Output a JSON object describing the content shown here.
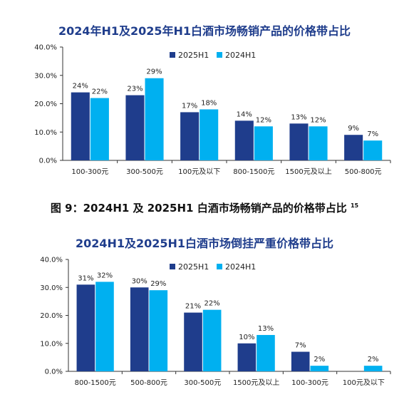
{
  "colors": {
    "series_2025": "#1f3d8c",
    "series_2024": "#00b0f0",
    "title": "#1f3d8c"
  },
  "caption": {
    "text": "图 9：2024H1 及 2025H1 白酒市场畅销产品的价格带占比",
    "footnote": "15"
  },
  "chart_data": [
    {
      "type": "bar",
      "title": "2024年H1及2025年H1白酒市场畅销产品的价格带占比",
      "categories": [
        "100-300元",
        "300-500元",
        "100元及以下",
        "800-1500元",
        "1500元及以上",
        "500-800元"
      ],
      "series": [
        {
          "name": "2025H1",
          "values": [
            24,
            23,
            17,
            14,
            13,
            9
          ],
          "labels": [
            "24%",
            "23%",
            "17%",
            "14%",
            "13%",
            "9%"
          ]
        },
        {
          "name": "2024H1",
          "values": [
            22,
            29,
            18,
            12,
            12,
            7
          ],
          "labels": [
            "22%",
            "29%",
            "18%",
            "12%",
            "12%",
            "7%"
          ]
        }
      ],
      "yticks": [
        "0.0%",
        "10.0%",
        "20.0%",
        "30.0%",
        "40.0%"
      ],
      "ylim": [
        0,
        40
      ],
      "legend": "top-right",
      "grid": false
    },
    {
      "type": "bar",
      "title": "2024H1及2025H1白酒市场倒挂严重价格带占比",
      "categories": [
        "800-1500元",
        "500-800元",
        "300-500元",
        "1500元及以上",
        "100-300元",
        "100元及以下"
      ],
      "series": [
        {
          "name": "2025H1",
          "values": [
            31,
            30,
            21,
            10,
            7,
            null
          ],
          "labels": [
            "31%",
            "30%",
            "21%",
            "10%",
            "7%",
            ""
          ]
        },
        {
          "name": "2024H1",
          "values": [
            32,
            29,
            22,
            13,
            2,
            2
          ],
          "labels": [
            "32%",
            "29%",
            "22%",
            "13%",
            "2%",
            "2%"
          ]
        }
      ],
      "yticks": [
        "0.0%",
        "10.0%",
        "20.0%",
        "30.0%",
        "40.0%"
      ],
      "ylim": [
        0,
        40
      ],
      "legend": "top-right",
      "grid": false
    }
  ]
}
